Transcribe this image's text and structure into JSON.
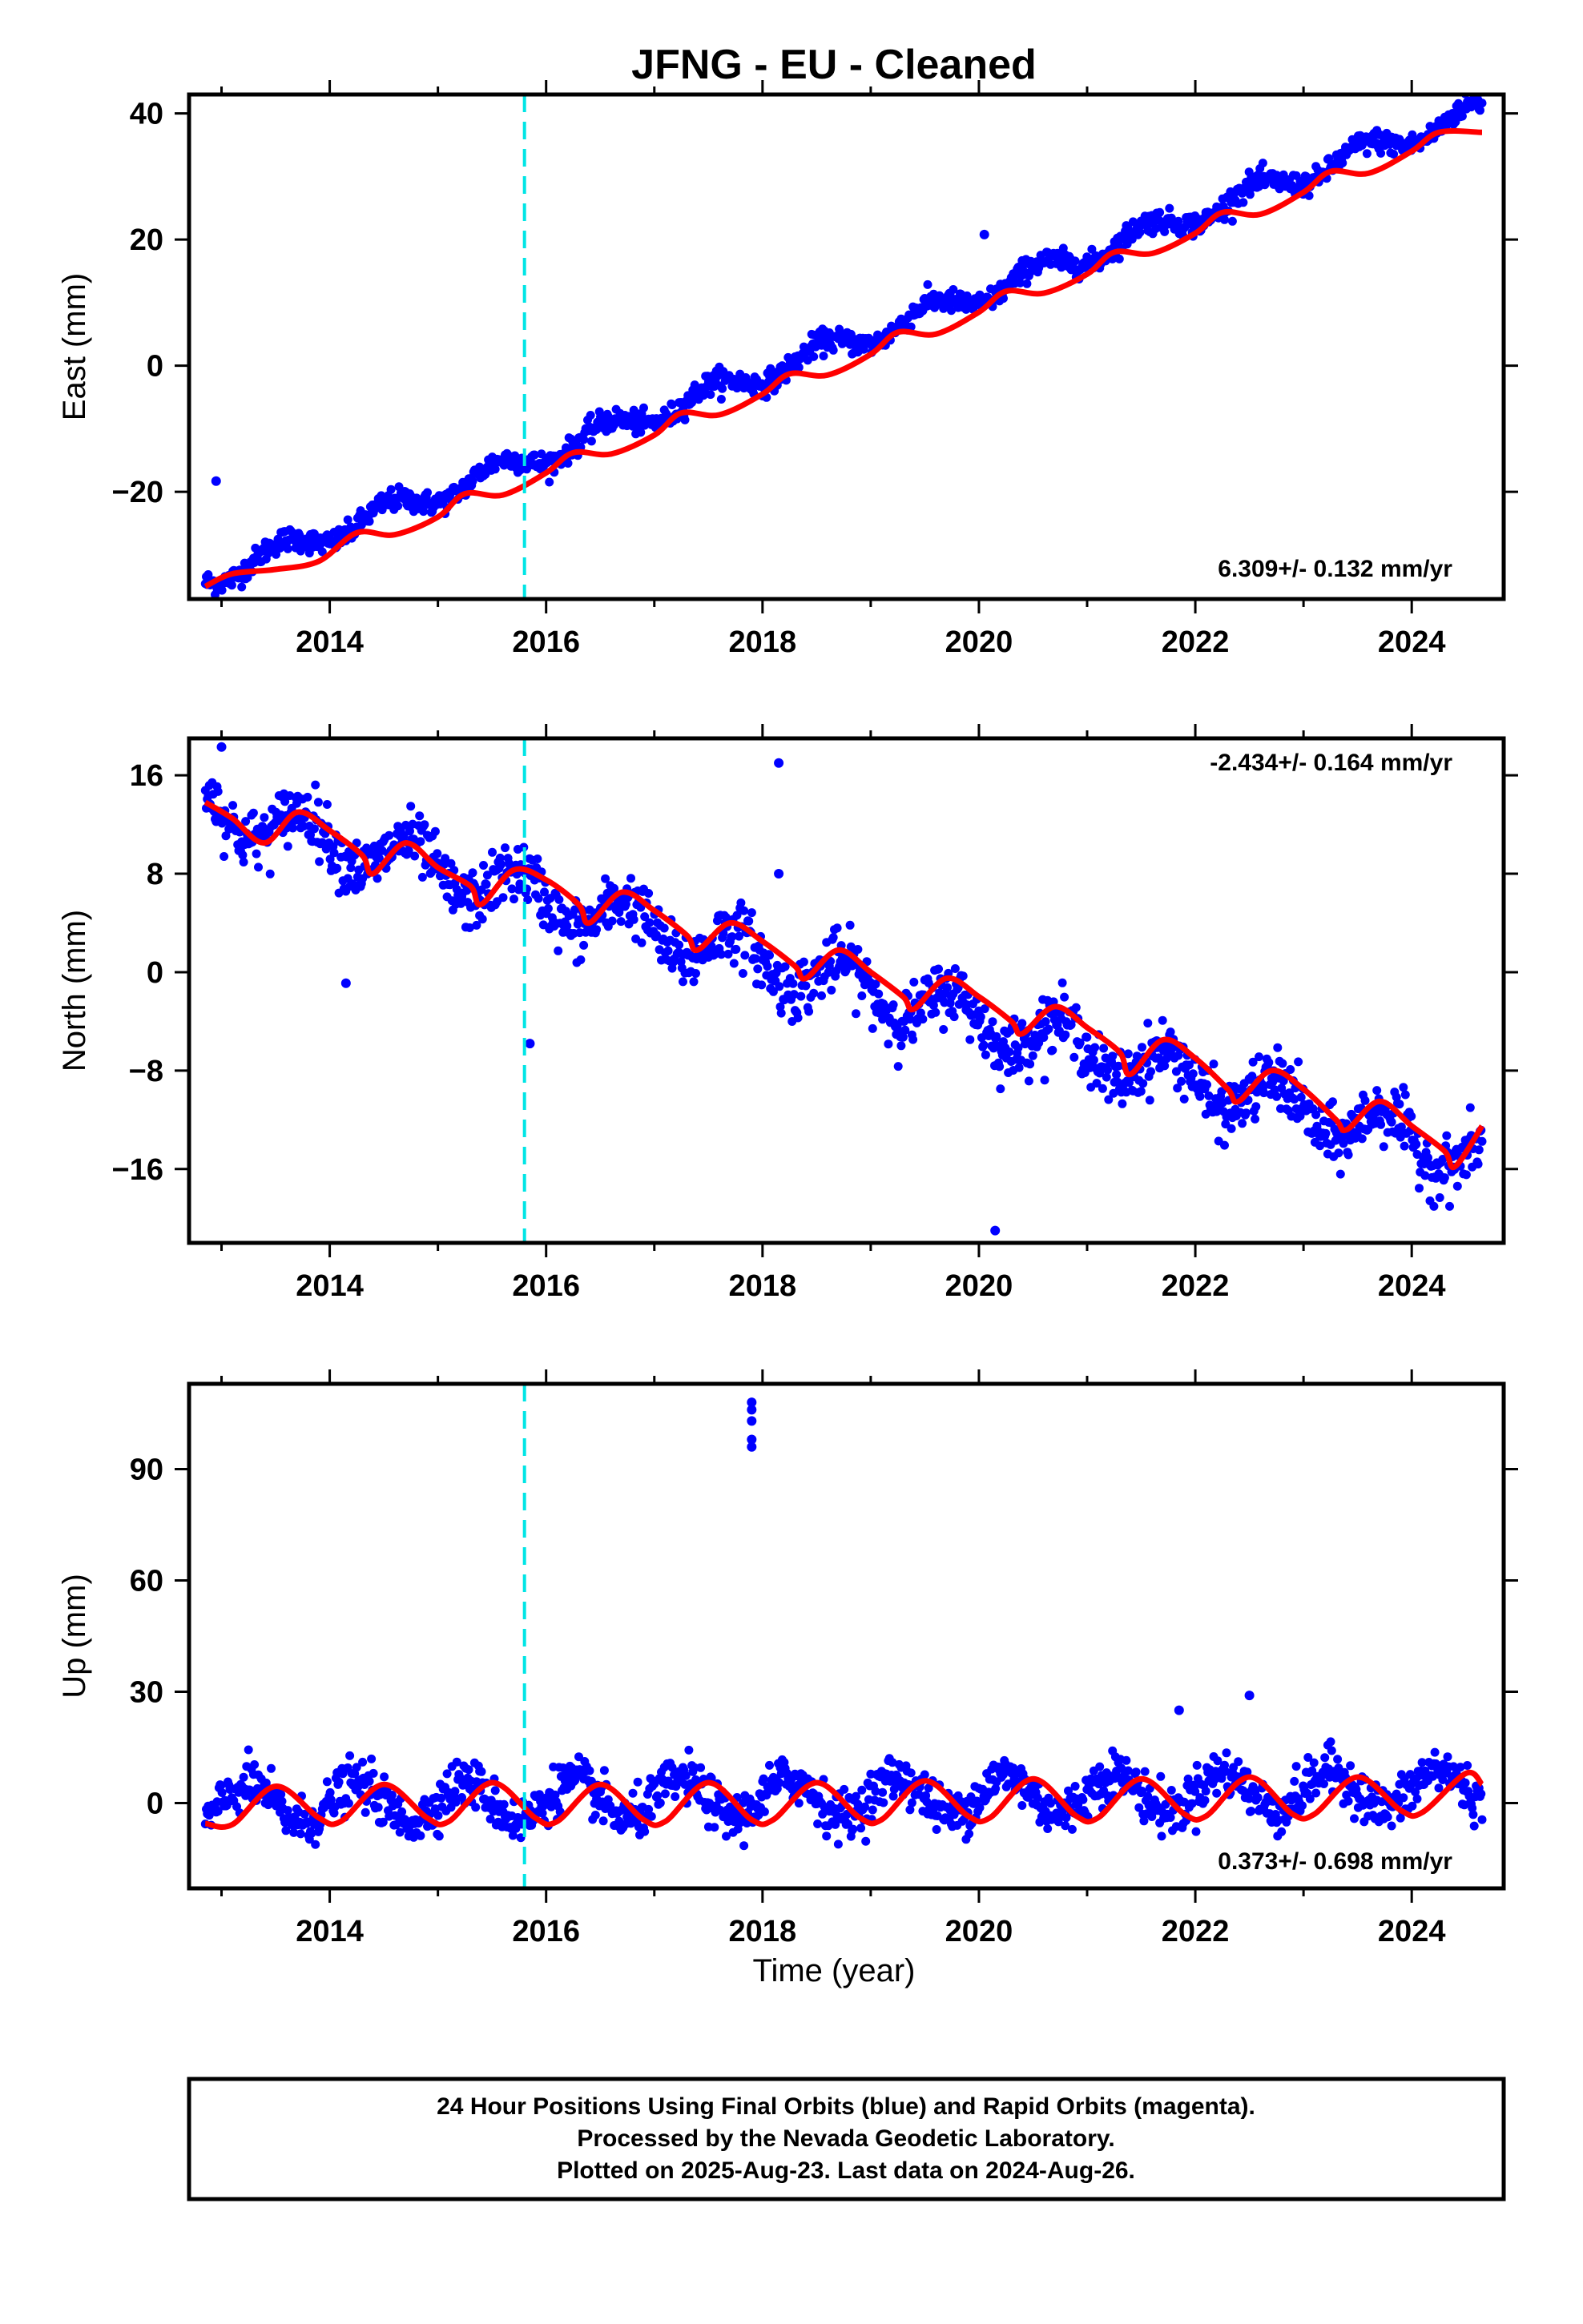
{
  "title": "JFNG  - EU - Cleaned",
  "xlabel": "Time (year)",
  "footer": {
    "line1": "24 Hour Positions Using Final Orbits (blue) and Rapid Orbits (magenta).",
    "line2": "Processed by the Nevada Geodetic Laboratory.",
    "line3": "Plotted on 2025-Aug-23. Last data on 2024-Aug-26."
  },
  "colors": {
    "points": "#0000ff",
    "fit": "#ff0000",
    "event": "#00e5e5",
    "frame": "#000000"
  },
  "chart_data": [
    {
      "type": "scatter",
      "ylabel": "East (mm)",
      "rate_label": "6.309+/- 0.132 mm/yr",
      "xlim": [
        2012.7,
        2024.85
      ],
      "ylim": [
        -37,
        43
      ],
      "xticks": [
        2014,
        2016,
        2018,
        2020,
        2022,
        2024
      ],
      "yticks": [
        40,
        20,
        0,
        -20
      ],
      "ytick_labels": [
        "40",
        "20",
        "0",
        "−20"
      ],
      "event_line_x": 2015.8,
      "x_range": [
        2012.85,
        2024.65
      ],
      "trend": {
        "ref_year": 2012.85,
        "intercept": -33.8,
        "slope": 6.309
      },
      "annual": {
        "amplitude": 1.6,
        "phase": 0.3
      },
      "noise_sd": 0.9,
      "outliers": [
        {
          "x": 2012.95,
          "y": -18.3
        },
        {
          "x": 2020.05,
          "y": 20.8
        }
      ],
      "fit_line": [
        [
          2012.85,
          -35
        ],
        [
          2013.1,
          -33
        ],
        [
          2013.5,
          -32.3
        ],
        [
          2013.9,
          -31
        ],
        [
          2014.25,
          -26.5
        ],
        [
          2014.6,
          -26.8
        ],
        [
          2015.0,
          -24
        ],
        [
          2015.25,
          -20.3
        ],
        [
          2015.6,
          -20.5
        ],
        [
          2016.0,
          -17
        ],
        [
          2016.25,
          -13.8
        ],
        [
          2016.6,
          -14
        ],
        [
          2017.0,
          -11
        ],
        [
          2017.25,
          -7.5
        ],
        [
          2017.6,
          -7.8
        ],
        [
          2018.0,
          -4.5
        ],
        [
          2018.25,
          -1.3
        ],
        [
          2018.6,
          -1.5
        ],
        [
          2019.0,
          1.8
        ],
        [
          2019.25,
          5.3
        ],
        [
          2019.6,
          5
        ],
        [
          2020.0,
          8.5
        ],
        [
          2020.25,
          11.8
        ],
        [
          2020.6,
          11.5
        ],
        [
          2021.0,
          14.5
        ],
        [
          2021.25,
          18
        ],
        [
          2021.6,
          17.8
        ],
        [
          2022.0,
          21
        ],
        [
          2022.25,
          24.3
        ],
        [
          2022.6,
          24
        ],
        [
          2023.0,
          27.5
        ],
        [
          2023.25,
          30.8
        ],
        [
          2023.6,
          30.5
        ],
        [
          2024.0,
          34
        ],
        [
          2024.25,
          37
        ],
        [
          2024.65,
          37
        ]
      ]
    },
    {
      "type": "scatter",
      "ylabel": "North (mm)",
      "rate_label": "-2.434+/- 0.164 mm/yr",
      "xlim": [
        2012.7,
        2024.85
      ],
      "ylim": [
        -22,
        19
      ],
      "xticks": [
        2014,
        2016,
        2018,
        2020,
        2022,
        2024
      ],
      "yticks": [
        16,
        8,
        0,
        -8,
        -16
      ],
      "ytick_labels": [
        "16",
        "8",
        "0",
        "−8",
        "−16"
      ],
      "event_line_x": 2015.8,
      "x_range": [
        2012.85,
        2024.65
      ],
      "trend": {
        "ref_year": 2012.85,
        "intercept": 13.5,
        "slope": -2.434
      },
      "annual": {
        "amplitude": 1.8,
        "phase": 1.5
      },
      "noise_sd": 1.2,
      "outliers": [
        {
          "x": 2013.0,
          "y": 18.3
        },
        {
          "x": 2014.15,
          "y": -0.9
        },
        {
          "x": 2015.85,
          "y": -5.8
        },
        {
          "x": 2018.15,
          "y": 17
        },
        {
          "x": 2018.15,
          "y": 8
        },
        {
          "x": 2020.15,
          "y": -21
        }
      ],
      "fit_line": [
        [
          2012.85,
          13.8
        ],
        [
          2013.1,
          12.5
        ],
        [
          2013.4,
          10.5
        ],
        [
          2013.7,
          13
        ],
        [
          2014.0,
          11.5
        ],
        [
          2014.3,
          9.5
        ],
        [
          2014.4,
          8
        ],
        [
          2014.7,
          10.5
        ],
        [
          2015.0,
          8.5
        ],
        [
          2015.3,
          7
        ],
        [
          2015.4,
          5.5
        ],
        [
          2015.7,
          8.3
        ],
        [
          2016.0,
          7.5
        ],
        [
          2016.3,
          5.5
        ],
        [
          2016.4,
          4
        ],
        [
          2016.7,
          6.5
        ],
        [
          2017.0,
          5
        ],
        [
          2017.3,
          3
        ],
        [
          2017.4,
          1.8
        ],
        [
          2017.7,
          4
        ],
        [
          2018.0,
          2.5
        ],
        [
          2018.3,
          0.5
        ],
        [
          2018.4,
          -0.5
        ],
        [
          2018.7,
          1.8
        ],
        [
          2019.0,
          0
        ],
        [
          2019.3,
          -2
        ],
        [
          2019.4,
          -3
        ],
        [
          2019.7,
          -0.5
        ],
        [
          2020.0,
          -2
        ],
        [
          2020.3,
          -4
        ],
        [
          2020.4,
          -5
        ],
        [
          2020.7,
          -2.8
        ],
        [
          2021.0,
          -4.5
        ],
        [
          2021.3,
          -6.5
        ],
        [
          2021.4,
          -8.3
        ],
        [
          2021.7,
          -5.5
        ],
        [
          2022.0,
          -7
        ],
        [
          2022.3,
          -9.5
        ],
        [
          2022.4,
          -10.5
        ],
        [
          2022.7,
          -8
        ],
        [
          2023.0,
          -9.5
        ],
        [
          2023.3,
          -12
        ],
        [
          2023.4,
          -12.8
        ],
        [
          2023.7,
          -10.5
        ],
        [
          2024.0,
          -12.5
        ],
        [
          2024.3,
          -14.5
        ],
        [
          2024.4,
          -15.8
        ],
        [
          2024.65,
          -12.5
        ]
      ]
    },
    {
      "type": "scatter",
      "ylabel": "Up (mm)",
      "rate_label": "0.373+/- 0.698 mm/yr",
      "xlim": [
        2012.7,
        2024.85
      ],
      "ylim": [
        -23,
        113
      ],
      "xticks": [
        2014,
        2016,
        2018,
        2020,
        2022,
        2024
      ],
      "yticks": [
        90,
        60,
        30,
        0
      ],
      "ytick_labels": [
        "90",
        "60",
        "30",
        "0"
      ],
      "event_line_x": 2015.8,
      "x_range": [
        2012.85,
        2024.65
      ],
      "trend": {
        "ref_year": 2012.85,
        "intercept": -0.5,
        "slope": 0.373
      },
      "annual": {
        "amplitude": 5.2,
        "phase": 0.0
      },
      "noise_sd": 3.2,
      "outliers": [
        {
          "x": 2017.9,
          "y": 108
        },
        {
          "x": 2017.9,
          "y": 106
        },
        {
          "x": 2017.9,
          "y": 103
        },
        {
          "x": 2017.9,
          "y": 98
        },
        {
          "x": 2017.9,
          "y": 96
        },
        {
          "x": 2021.85,
          "y": 25
        },
        {
          "x": 2022.5,
          "y": 29
        }
      ],
      "fit_line": [
        [
          2012.85,
          -5.5
        ],
        [
          2013.1,
          -5.8
        ],
        [
          2013.5,
          4.5
        ],
        [
          2013.9,
          -4
        ],
        [
          2014.1,
          -5
        ],
        [
          2014.5,
          5
        ],
        [
          2014.9,
          -4
        ],
        [
          2015.1,
          -5
        ],
        [
          2015.5,
          5.5
        ],
        [
          2015.9,
          -4
        ],
        [
          2016.1,
          -5
        ],
        [
          2016.5,
          5
        ],
        [
          2016.9,
          -4.5
        ],
        [
          2017.1,
          -5
        ],
        [
          2017.5,
          5.5
        ],
        [
          2017.9,
          -4.5
        ],
        [
          2018.1,
          -4.5
        ],
        [
          2018.5,
          5.5
        ],
        [
          2018.9,
          -4
        ],
        [
          2019.1,
          -4.5
        ],
        [
          2019.5,
          6
        ],
        [
          2019.9,
          -3.5
        ],
        [
          2020.1,
          -4
        ],
        [
          2020.5,
          6.5
        ],
        [
          2020.9,
          -3.5
        ],
        [
          2021.1,
          -4
        ],
        [
          2021.5,
          6.5
        ],
        [
          2021.9,
          -3
        ],
        [
          2022.1,
          -3.5
        ],
        [
          2022.5,
          7
        ],
        [
          2022.9,
          -3
        ],
        [
          2023.1,
          -3
        ],
        [
          2023.5,
          7
        ],
        [
          2023.9,
          -2
        ],
        [
          2024.1,
          -2.5
        ],
        [
          2024.5,
          8
        ],
        [
          2024.65,
          5
        ]
      ]
    }
  ]
}
